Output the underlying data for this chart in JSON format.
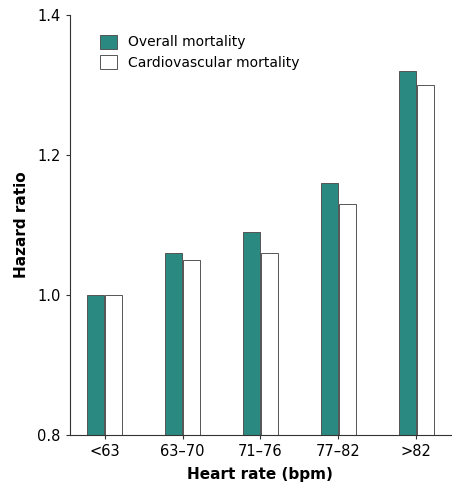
{
  "categories": [
    "<63",
    "63–70",
    "71–76",
    "77–82",
    ">82"
  ],
  "overall_mortality": [
    1.0,
    1.06,
    1.09,
    1.16,
    1.32
  ],
  "cardiovascular_mortality": [
    1.0,
    1.05,
    1.06,
    1.13,
    1.3
  ],
  "overall_color": "#2a8a82",
  "cardio_color": "#ffffff",
  "bar_edge_color": "#555555",
  "ylabel": "Hazard ratio",
  "xlabel": "Heart rate (bpm)",
  "ylim": [
    0.8,
    1.4
  ],
  "yticks": [
    0.8,
    1.0,
    1.2,
    1.4
  ],
  "legend_labels": [
    "Overall mortality",
    "Cardiovascular mortality"
  ],
  "bar_width": 0.22,
  "bar_gap": 0.01,
  "figsize": [
    4.65,
    5.0
  ],
  "dpi": 100
}
